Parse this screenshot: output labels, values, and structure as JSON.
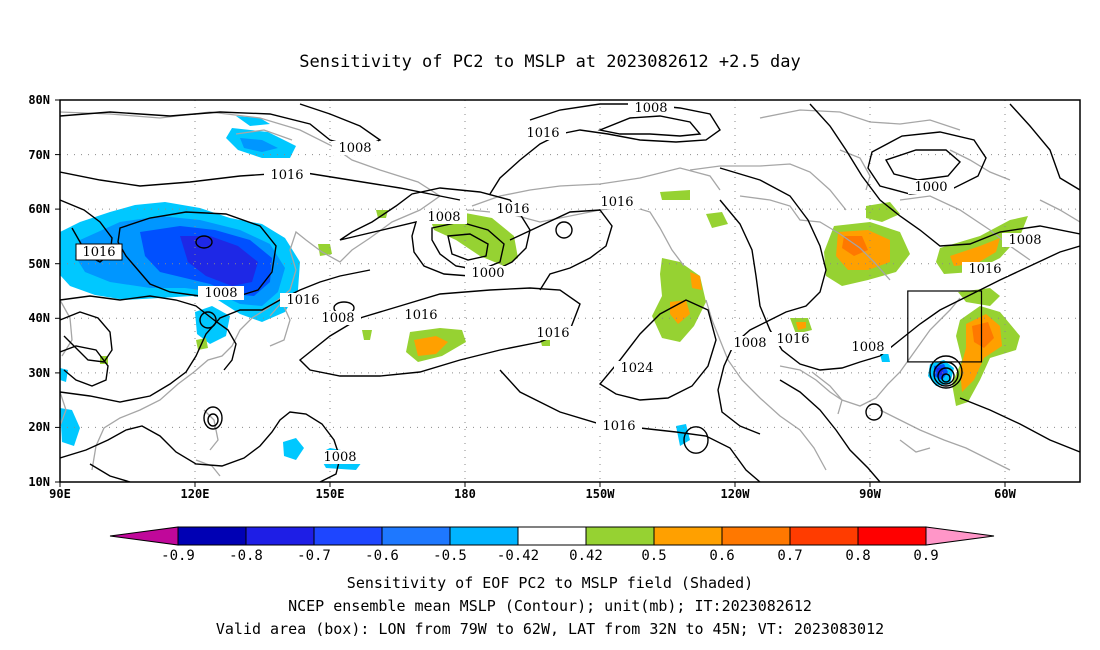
{
  "title": "Sensitivity of PC2 to MSLP at 2023082612 +2.5 day",
  "map": {
    "lat_labels": [
      "80N",
      "70N",
      "60N",
      "50N",
      "40N",
      "30N",
      "20N",
      "10N"
    ],
    "lon_labels": [
      "90E",
      "120E",
      "150E",
      "180",
      "150W",
      "120W",
      "90W",
      "60W"
    ],
    "contour_labels": [
      "1008",
      "1008",
      "1016",
      "1016",
      "1016",
      "1016",
      "1008",
      "1000",
      "1016",
      "1008",
      "1016",
      "1008",
      "1016",
      "1016",
      "1024",
      "1008",
      "1016",
      "1008",
      "1008",
      "1016",
      "1016",
      "1000",
      "1008"
    ],
    "valid_box": {
      "lon": [
        "79W",
        "62W"
      ],
      "lat": [
        "32N",
        "45N"
      ]
    },
    "colors": {
      "light_blue": "#00c8ff",
      "mid_blue": "#0096ff",
      "blue": "#0050ff",
      "dark_blue": "#1e28e6",
      "green": "#96d232",
      "orange": "#ffa000",
      "dark_orange": "#ff7800",
      "land": "#a6a6a6",
      "contour": "#000000"
    }
  },
  "colorbar": {
    "tick_labels": [
      "-0.9",
      "-0.8",
      "-0.7",
      "-0.6",
      "-0.5",
      "-0.42",
      "0.42",
      "0.5",
      "0.6",
      "0.7",
      "0.8",
      "0.9"
    ],
    "colors": [
      "#c0089a",
      "#0000b4",
      "#1e1ee6",
      "#1e46ff",
      "#1e78ff",
      "#00b4ff",
      "#00c8ff",
      "#ffffff",
      "#96d232",
      "#ffa000",
      "#ff7800",
      "#ff3c00",
      "#ff0000",
      "#ff96c8"
    ]
  },
  "footer": {
    "line1": "Sensitivity of EOF PC2 to MSLP field (Shaded)",
    "line2": "NCEP ensemble mean MSLP (Contour); unit(mb); IT:2023082612",
    "line3": "Valid area (box): LON from 79W to 62W, LAT from 32N to 45N; VT: 2023083012"
  }
}
